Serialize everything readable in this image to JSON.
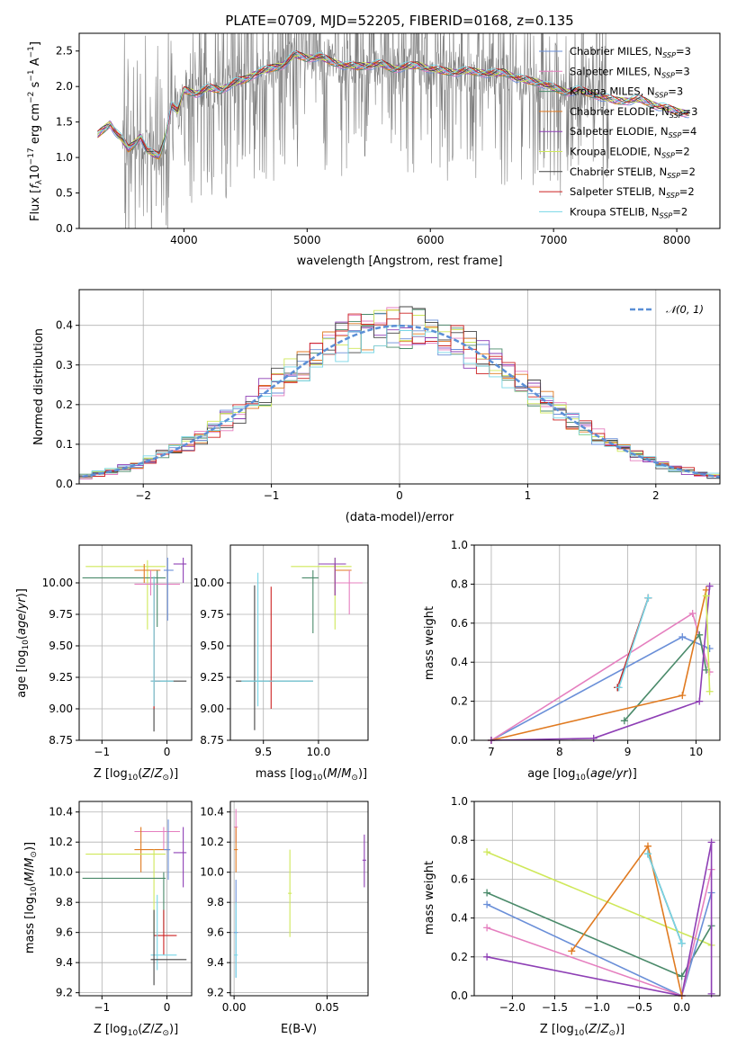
{
  "title": "PLATE=0709, MJD=52205, FIBERID=0168, z=0.135",
  "colors": {
    "chab_miles": "#6a8fd8",
    "salp_miles": "#e57fbf",
    "krou_miles": "#4a8a6a",
    "chab_elodie": "#e07a20",
    "salp_elodie": "#8e3fb5",
    "krou_elodie": "#cfe85a",
    "chab_stelib": "#444444",
    "salp_stelib": "#cc2222",
    "krou_stelib": "#77d6e6",
    "obs": "#808080"
  },
  "chart_data": [
    {
      "type": "line",
      "panel": "spectrum",
      "title": "PLATE=0709, MJD=52205, FIBERID=0168, z=0.135",
      "xlabel": "wavelength [Angstrom, rest frame]",
      "ylabel": "Flux [f_λ 10^-17 erg cm^-2 s^-1 A^-1]",
      "xlim": [
        3150,
        8350
      ],
      "ylim": [
        0,
        2.75
      ],
      "xticks": [
        "4000",
        "5000",
        "6000",
        "7000",
        "8000"
      ],
      "yticks": [
        "0.0",
        "0.5",
        "1.0",
        "1.5",
        "2.0",
        "2.5"
      ],
      "continuum": {
        "x": [
          3300,
          3350,
          3400,
          3450,
          3500,
          3550,
          3600,
          3650,
          3700,
          3750,
          3800,
          3850,
          3900,
          3950,
          4000,
          4100,
          4200,
          4300,
          4400,
          4500,
          4600,
          4700,
          4800,
          4900,
          5000,
          5100,
          5200,
          5300,
          5400,
          5500,
          5600,
          5700,
          5800,
          5900,
          6000,
          6100,
          6200,
          6300,
          6400,
          6500,
          6600,
          6700,
          6800,
          6900,
          7000,
          7100,
          7200,
          7300,
          7400,
          7500,
          7600,
          7700,
          7800,
          7900,
          8000,
          8100
        ],
        "y": [
          1.32,
          1.4,
          1.48,
          1.35,
          1.25,
          1.12,
          1.2,
          1.3,
          1.1,
          1.05,
          1.02,
          1.3,
          1.75,
          1.65,
          1.95,
          1.9,
          1.98,
          1.95,
          2.05,
          2.1,
          2.2,
          2.25,
          2.3,
          2.45,
          2.4,
          2.42,
          2.35,
          2.3,
          2.28,
          2.3,
          2.32,
          2.25,
          2.28,
          2.3,
          2.25,
          2.22,
          2.2,
          2.22,
          2.2,
          2.18,
          2.2,
          2.12,
          2.08,
          2.05,
          1.98,
          1.92,
          1.95,
          1.9,
          1.85,
          1.8,
          1.8,
          1.82,
          1.75,
          1.7,
          1.65,
          1.62
        ]
      },
      "series": [
        {
          "name": "Chabrier MILES, N_SSP=3",
          "label_main": "Chabrier MILES, N",
          "label_sub": "SSP",
          "label_tail": "=3",
          "color_key": "chab_miles"
        },
        {
          "name": "Salpeter MILES, N_SSP=3",
          "label_main": "Salpeter MILES, N",
          "label_sub": "SSP",
          "label_tail": "=3",
          "color_key": "salp_miles"
        },
        {
          "name": "Kroupa MILES, N_SSP=3",
          "label_main": "Kroupa MILES, N",
          "label_sub": "SSP",
          "label_tail": "=3",
          "color_key": "krou_miles"
        },
        {
          "name": "Chabrier ELODIE, N_SSP=3",
          "label_main": "Chabrier ELODIE, N",
          "label_sub": "SSP",
          "label_tail": "=3",
          "color_key": "chab_elodie"
        },
        {
          "name": "Salpeter ELODIE, N_SSP=4",
          "label_main": "Salpeter ELODIE, N",
          "label_sub": "SSP",
          "label_tail": "=4",
          "color_key": "salp_elodie"
        },
        {
          "name": "Kroupa ELODIE, N_SSP=2",
          "label_main": "Kroupa ELODIE, N",
          "label_sub": "SSP",
          "label_tail": "=2",
          "color_key": "krou_elodie"
        },
        {
          "name": "Chabrier STELIB, N_SSP=2",
          "label_main": "Chabrier STELIB, N",
          "label_sub": "SSP",
          "label_tail": "=2",
          "color_key": "chab_stelib"
        },
        {
          "name": "Salpeter STELIB, N_SSP=2",
          "label_main": "Salpeter STELIB, N",
          "label_sub": "SSP",
          "label_tail": "=2",
          "color_key": "salp_stelib"
        },
        {
          "name": "Kroupa STELIB, N_SSP=2",
          "label_main": "Kroupa STELIB, N",
          "label_sub": "SSP",
          "label_tail": "=2",
          "color_key": "krou_stelib"
        }
      ],
      "legend": "right"
    },
    {
      "type": "bar",
      "panel": "residual-histogram",
      "xlabel": "(data-model)/error",
      "ylabel": "Normed distribution",
      "xlim": [
        -2.5,
        2.5
      ],
      "ylim": [
        0,
        0.49
      ],
      "xticks": [
        "-2",
        "-1",
        "0",
        "1",
        "2"
      ],
      "yticks": [
        "0.0",
        "0.1",
        "0.2",
        "0.3",
        "0.4"
      ],
      "reference_curve": "𝒩(0, 1)",
      "legend": "top-right",
      "grid": true
    },
    {
      "type": "scatter",
      "panel": "age-vs-Z",
      "xlabel": "Z [log10(Z/Z☉)]",
      "ylabel": "age [log10(age/yr)]",
      "xlim": [
        -1.35,
        0.38
      ],
      "ylim": [
        8.75,
        10.3
      ],
      "xticks": [
        "-1",
        "0"
      ],
      "yticks": [
        "8.75",
        "9.00",
        "9.25",
        "9.50",
        "9.75",
        "10.00"
      ],
      "points": [
        {
          "c": "krou_elodie",
          "x": -0.3,
          "y": 10.13,
          "xe": [
            -1.25,
            -0.02
          ],
          "ye": [
            9.63,
            10.18
          ]
        },
        {
          "c": "krou_miles",
          "x": -0.15,
          "y": 10.04,
          "xe": [
            -1.3,
            -0.02
          ],
          "ye": [
            9.65,
            10.1
          ]
        },
        {
          "c": "chab_elodie",
          "x": -0.35,
          "y": 10.1,
          "xe": [
            -0.5,
            -0.1
          ],
          "ye": [
            10.0,
            10.15
          ]
        },
        {
          "c": "salp_miles",
          "x": -0.25,
          "y": 9.99,
          "xe": [
            -0.5,
            0.2
          ],
          "ye": [
            9.9,
            10.1
          ]
        },
        {
          "c": "salp_elodie",
          "x": 0.25,
          "y": 10.15,
          "xe": [
            0.1,
            0.3
          ],
          "ye": [
            10.0,
            10.2
          ]
        },
        {
          "c": "chab_miles",
          "x": 0.01,
          "y": 10.1,
          "xe": [
            -0.05,
            0.1
          ],
          "ye": [
            9.7,
            10.2
          ]
        },
        {
          "c": "chab_stelib",
          "x": -0.2,
          "y": 9.22,
          "xe": [
            -0.2,
            0.3
          ],
          "ye": [
            8.82,
            10.05
          ]
        },
        {
          "c": "salp_stelib",
          "x": -0.2,
          "y": 9.22,
          "xe": [
            -0.25,
            -0.1
          ],
          "ye": [
            9.0,
            10.0
          ]
        },
        {
          "c": "krou_stelib",
          "x": -0.2,
          "y": 9.22,
          "xe": [
            -0.25,
            0.1
          ],
          "ye": [
            9.02,
            10.05
          ]
        }
      ]
    },
    {
      "type": "scatter",
      "panel": "age-vs-mass",
      "xlabel": "mass [log10(M/M☉)]",
      "ylabel": "",
      "xlim": [
        9.2,
        10.45
      ],
      "ylim": [
        8.75,
        10.3
      ],
      "xticks": [
        "9.5",
        "10.0"
      ],
      "yticks": [
        "8.75",
        "9.00",
        "9.25",
        "9.50",
        "9.75",
        "10.00"
      ],
      "points": [
        {
          "c": "krou_elodie",
          "x": 10.15,
          "y": 10.13,
          "xe": [
            9.75,
            10.3
          ],
          "ye": [
            9.63,
            10.2
          ]
        },
        {
          "c": "krou_miles",
          "x": 9.95,
          "y": 10.04,
          "xe": [
            9.85,
            10.0
          ],
          "ye": [
            9.6,
            10.1
          ]
        },
        {
          "c": "chab_elodie",
          "x": 10.15,
          "y": 10.1,
          "xe": [
            10.15,
            10.3
          ],
          "ye": [
            9.9,
            10.15
          ]
        },
        {
          "c": "salp_miles",
          "x": 10.28,
          "y": 10.0,
          "xe": [
            10.15,
            10.4
          ],
          "ye": [
            9.75,
            10.1
          ]
        },
        {
          "c": "salp_elodie",
          "x": 10.15,
          "y": 10.15,
          "xe": [
            10.0,
            10.25
          ],
          "ye": [
            9.9,
            10.2
          ]
        },
        {
          "c": "chab_stelib",
          "x": 9.42,
          "y": 9.22,
          "xe": [
            9.25,
            9.95
          ],
          "ye": [
            8.83,
            9.98
          ]
        },
        {
          "c": "salp_stelib",
          "x": 9.57,
          "y": 9.22,
          "xe": [
            9.55,
            9.6
          ],
          "ye": [
            9.0,
            9.97
          ]
        },
        {
          "c": "krou_stelib",
          "x": 9.45,
          "y": 9.22,
          "xe": [
            9.3,
            9.95
          ],
          "ye": [
            9.02,
            10.08
          ]
        }
      ]
    },
    {
      "type": "line",
      "panel": "mass-weight-vs-age",
      "xlabel": "age [log10(age/yr)]",
      "ylabel": "mass weight",
      "xlim": [
        6.75,
        10.35
      ],
      "ylim": [
        0,
        1.0
      ],
      "xticks": [
        "7",
        "8",
        "9",
        "10"
      ],
      "yticks": [
        "0.0",
        "0.2",
        "0.4",
        "0.6",
        "0.8",
        "1.0"
      ],
      "series": [
        {
          "c": "chab_miles",
          "x": [
            7.0,
            9.8,
            10.2
          ],
          "y": [
            0.0,
            0.53,
            0.47
          ]
        },
        {
          "c": "salp_miles",
          "x": [
            7.0,
            9.95,
            10.2
          ],
          "y": [
            0.0,
            0.65,
            0.35
          ]
        },
        {
          "c": "krou_miles",
          "x": [
            8.95,
            10.05,
            10.15
          ],
          "y": [
            0.1,
            0.54,
            0.36
          ]
        },
        {
          "c": "chab_elodie",
          "x": [
            7.0,
            9.8,
            10.15
          ],
          "y": [
            0.0,
            0.23,
            0.77
          ]
        },
        {
          "c": "salp_elodie",
          "x": [
            7.0,
            8.5,
            10.05,
            10.2
          ],
          "y": [
            0.0,
            0.01,
            0.2,
            0.79
          ]
        },
        {
          "c": "krou_elodie",
          "x": [
            10.15,
            10.2
          ],
          "y": [
            0.74,
            0.25
          ]
        },
        {
          "c": "chab_stelib",
          "x": [
            8.85,
            9.3
          ],
          "y": [
            0.27,
            0.73
          ]
        },
        {
          "c": "salp_stelib",
          "x": [
            8.85,
            9.3
          ],
          "y": [
            0.27,
            0.73
          ]
        },
        {
          "c": "krou_stelib",
          "x": [
            8.87,
            9.3
          ],
          "y": [
            0.27,
            0.73
          ]
        }
      ]
    },
    {
      "type": "scatter",
      "panel": "mass-vs-Z",
      "xlabel": "Z [log10(Z/Z☉)]",
      "ylabel": "mass [log10(M/M☉)]",
      "xlim": [
        -1.35,
        0.38
      ],
      "ylim": [
        9.18,
        10.47
      ],
      "xticks": [
        "-1",
        "0"
      ],
      "yticks": [
        "9.2",
        "9.4",
        "9.6",
        "9.8",
        "10.0",
        "10.2",
        "10.4"
      ],
      "points": [
        {
          "c": "salp_miles",
          "x": -0.05,
          "y": 10.27,
          "xe": [
            -0.5,
            0.2
          ],
          "ye": [
            10.15,
            10.3
          ]
        },
        {
          "c": "chab_elodie",
          "x": -0.4,
          "y": 10.15,
          "xe": [
            -0.5,
            0.05
          ],
          "ye": [
            10.0,
            10.3
          ]
        },
        {
          "c": "chab_miles",
          "x": 0.02,
          "y": 10.15,
          "xe": [
            -0.05,
            0.05
          ],
          "ye": [
            9.95,
            10.35
          ]
        },
        {
          "c": "salp_elodie",
          "x": 0.25,
          "y": 10.13,
          "xe": [
            0.1,
            0.3
          ],
          "ye": [
            9.9,
            10.3
          ]
        },
        {
          "c": "krou_elodie",
          "x": -0.2,
          "y": 10.12,
          "xe": [
            -1.25,
            -0.02
          ],
          "ye": [
            9.58,
            10.15
          ]
        },
        {
          "c": "krou_miles",
          "x": -0.05,
          "y": 9.96,
          "xe": [
            -1.3,
            -0.02
          ],
          "ye": [
            9.6,
            10.0
          ]
        },
        {
          "c": "salp_stelib",
          "x": -0.05,
          "y": 9.58,
          "xe": [
            -0.2,
            0.15
          ],
          "ye": [
            9.45,
            9.75
          ]
        },
        {
          "c": "krou_stelib",
          "x": -0.15,
          "y": 9.45,
          "xe": [
            -0.25,
            0.15
          ],
          "ye": [
            9.35,
            9.85
          ]
        },
        {
          "c": "chab_stelib",
          "x": -0.2,
          "y": 9.42,
          "xe": [
            -0.25,
            0.3
          ],
          "ye": [
            9.25,
            9.75
          ]
        }
      ]
    },
    {
      "type": "scatter",
      "panel": "mass-vs-EBV",
      "xlabel": "E(B-V)",
      "ylabel": "",
      "xlim": [
        -0.002,
        0.072
      ],
      "ylim": [
        9.18,
        10.47
      ],
      "xticks": [
        "0.00",
        "0.05"
      ],
      "yticks": [
        "9.2",
        "9.4",
        "9.6",
        "9.8",
        "10.0",
        "10.2",
        "10.4"
      ],
      "points": [
        {
          "c": "salp_miles",
          "x": 0.001,
          "y": 10.3,
          "xe": [
            0.0,
            0.002
          ],
          "ye": [
            10.2,
            10.42
          ]
        },
        {
          "c": "chab_elodie",
          "x": 0.001,
          "y": 10.15,
          "xe": [
            0.0,
            0.002
          ],
          "ye": [
            10.0,
            10.3
          ]
        },
        {
          "c": "krou_elodie",
          "x": 0.03,
          "y": 9.86,
          "xe": [
            0.029,
            0.031
          ],
          "ye": [
            9.57,
            10.15
          ]
        },
        {
          "c": "salp_elodie",
          "x": 0.07,
          "y": 10.08,
          "xe": [
            0.069,
            0.071
          ],
          "ye": [
            9.9,
            10.25
          ]
        },
        {
          "c": "chab_miles",
          "x": 0.001,
          "y": 9.6,
          "xe": [
            0.0,
            0.002
          ],
          "ye": [
            9.3,
            9.95
          ]
        },
        {
          "c": "krou_stelib",
          "x": 0.001,
          "y": 9.45,
          "xe": [
            0.0,
            0.002
          ],
          "ye": [
            9.3,
            9.8
          ]
        }
      ]
    },
    {
      "type": "line",
      "panel": "mass-weight-vs-Z",
      "xlabel": "Z [log10(Z/Z☉)]",
      "ylabel": "mass weight",
      "xlim": [
        -2.45,
        0.45
      ],
      "ylim": [
        0,
        1.0
      ],
      "xticks": [
        "-2.0",
        "-1.5",
        "-1.0",
        "-0.5",
        "0.0"
      ],
      "yticks": [
        "0.0",
        "0.2",
        "0.4",
        "0.6",
        "0.8",
        "1.0"
      ],
      "series": [
        {
          "c": "krou_elodie",
          "x": [
            -2.3,
            0.35
          ],
          "y": [
            0.74,
            0.26
          ]
        },
        {
          "c": "krou_miles",
          "x": [
            -2.3,
            0.0,
            0.35
          ],
          "y": [
            0.53,
            0.1,
            0.36
          ]
        },
        {
          "c": "chab_miles",
          "x": [
            -2.3,
            0.0,
            0.35
          ],
          "y": [
            0.47,
            0.0,
            0.53
          ]
        },
        {
          "c": "salp_miles",
          "x": [
            -2.3,
            0.0,
            0.35
          ],
          "y": [
            0.35,
            0.0,
            0.65
          ]
        },
        {
          "c": "salp_elodie",
          "x": [
            -2.3,
            0.0,
            0.35,
            0.35
          ],
          "y": [
            0.2,
            0.0,
            0.79,
            0.01
          ]
        },
        {
          "c": "chab_elodie",
          "x": [
            -1.3,
            -0.4,
            0.0
          ],
          "y": [
            0.23,
            0.77,
            0.0
          ]
        },
        {
          "c": "chab_stelib",
          "x": [
            -0.4,
            0.0
          ],
          "y": [
            0.73,
            0.27
          ]
        },
        {
          "c": "krou_stelib",
          "x": [
            -0.4,
            0.0
          ],
          "y": [
            0.73,
            0.27
          ]
        }
      ]
    }
  ]
}
